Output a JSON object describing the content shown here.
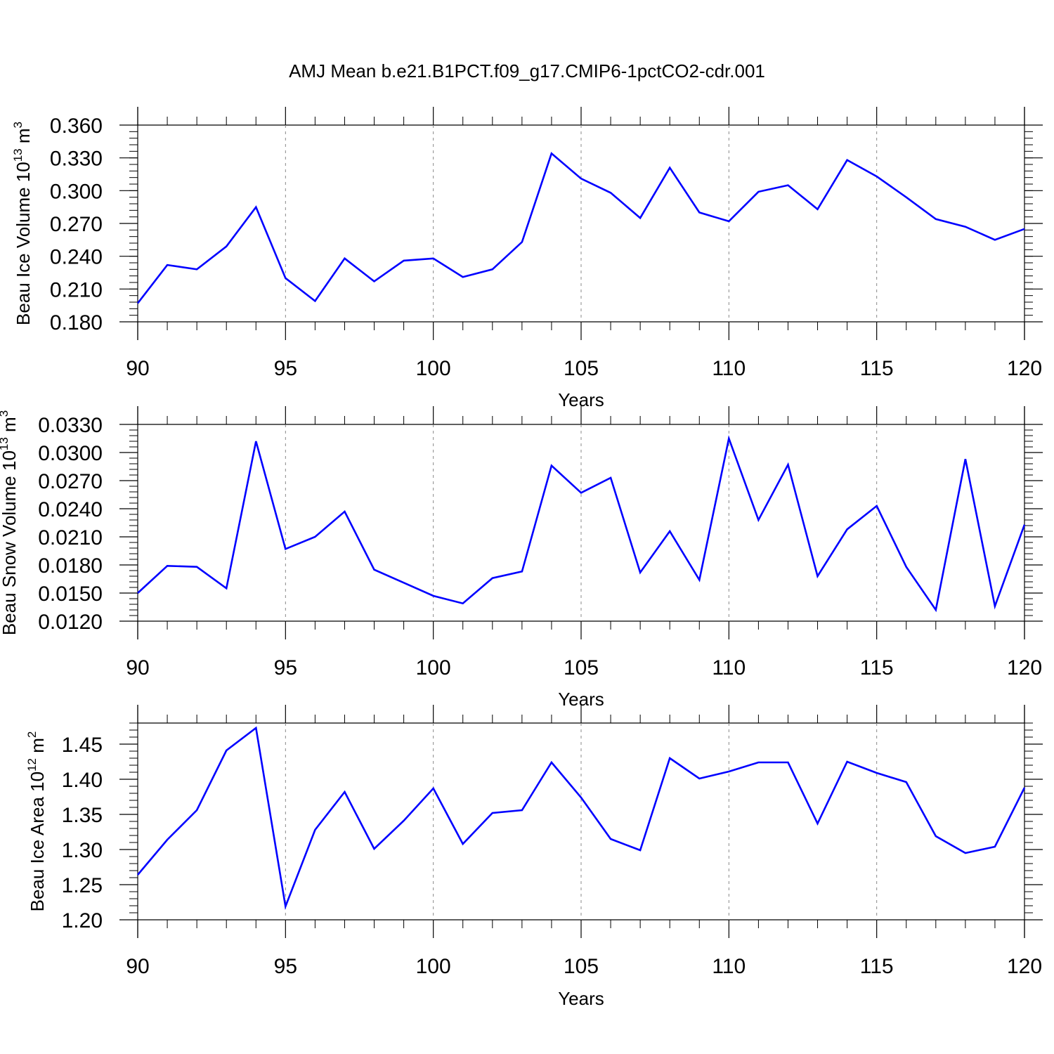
{
  "chart_data": [
    {
      "type": "line",
      "title": "AMJ Mean b.e21.B1PCT.f09_g17.CMIP6-1pctCO2-cdr.001",
      "xlabel": "Years",
      "ylabel": "Beau Ice Volume 10",
      "ylabel_exp": "13",
      "ylabel_unit": " m",
      "ylabel_unit_exp": "3",
      "xlim": [
        90,
        120
      ],
      "ylim": [
        0.18,
        0.36
      ],
      "x_ticks": [
        90,
        95,
        100,
        105,
        110,
        115,
        120
      ],
      "x_tick_labels": [
        "90",
        "95",
        "100",
        "105",
        "110",
        "115",
        "120"
      ],
      "y_ticks": [
        0.18,
        0.21,
        0.24,
        0.27,
        0.3,
        0.33,
        0.36
      ],
      "y_tick_labels": [
        "0.180",
        "0.210",
        "0.240",
        "0.270",
        "0.300",
        "0.330",
        "0.360"
      ],
      "grid": "vertical dashed at major x ticks",
      "color": "#0000ff",
      "x": [
        90,
        91,
        92,
        93,
        94,
        95,
        96,
        97,
        98,
        99,
        100,
        101,
        102,
        103,
        104,
        105,
        106,
        107,
        108,
        109,
        110,
        111,
        112,
        113,
        114,
        115,
        116,
        117,
        118,
        119,
        120
      ],
      "values": [
        0.197,
        0.232,
        0.228,
        0.249,
        0.285,
        0.22,
        0.199,
        0.238,
        0.217,
        0.236,
        0.238,
        0.221,
        0.228,
        0.253,
        0.334,
        0.311,
        0.298,
        0.275,
        0.321,
        0.28,
        0.272,
        0.299,
        0.305,
        0.283,
        0.328,
        0.313,
        0.294,
        0.274,
        0.267,
        0.255,
        0.265
      ]
    },
    {
      "type": "line",
      "xlabel": "Years",
      "ylabel": "Beau Snow Volume 10",
      "ylabel_exp": "13",
      "ylabel_unit": " m",
      "ylabel_unit_exp": "3",
      "xlim": [
        90,
        120
      ],
      "ylim": [
        0.012,
        0.033
      ],
      "x_ticks": [
        90,
        95,
        100,
        105,
        110,
        115,
        120
      ],
      "x_tick_labels": [
        "90",
        "95",
        "100",
        "105",
        "110",
        "115",
        "120"
      ],
      "y_ticks": [
        0.012,
        0.015,
        0.018,
        0.021,
        0.024,
        0.027,
        0.03,
        0.033
      ],
      "y_tick_labels": [
        "0.0120",
        "0.0150",
        "0.0180",
        "0.0210",
        "0.0240",
        "0.0270",
        "0.0300",
        "0.0330"
      ],
      "grid": "vertical dashed at major x ticks",
      "color": "#0000ff",
      "x": [
        90,
        91,
        92,
        93,
        94,
        95,
        96,
        97,
        98,
        99,
        100,
        101,
        102,
        103,
        104,
        105,
        106,
        107,
        108,
        109,
        110,
        111,
        112,
        113,
        114,
        115,
        116,
        117,
        118,
        119,
        120
      ],
      "values": [
        0.015,
        0.0179,
        0.0178,
        0.0155,
        0.0312,
        0.0197,
        0.021,
        0.0237,
        0.0175,
        0.0161,
        0.0147,
        0.0139,
        0.0166,
        0.0173,
        0.0286,
        0.0257,
        0.0273,
        0.0172,
        0.0216,
        0.0164,
        0.0315,
        0.0228,
        0.0287,
        0.0168,
        0.0218,
        0.0243,
        0.0178,
        0.0132,
        0.0293,
        0.0136,
        0.0223
      ]
    },
    {
      "type": "line",
      "xlabel": "Years",
      "ylabel": "Beau Ice Area 10",
      "ylabel_exp": "12",
      "ylabel_unit": " m",
      "ylabel_unit_exp": "2",
      "xlim": [
        90,
        120
      ],
      "ylim": [
        1.2,
        1.48
      ],
      "x_ticks": [
        90,
        95,
        100,
        105,
        110,
        115,
        120
      ],
      "x_tick_labels": [
        "90",
        "95",
        "100",
        "105",
        "110",
        "115",
        "120"
      ],
      "y_ticks": [
        1.2,
        1.25,
        1.3,
        1.35,
        1.4,
        1.45
      ],
      "y_tick_labels": [
        "1.20",
        "1.25",
        "1.30",
        "1.35",
        "1.40",
        "1.45"
      ],
      "grid": "vertical dashed at major x ticks",
      "color": "#0000ff",
      "x": [
        90,
        91,
        92,
        93,
        94,
        95,
        96,
        97,
        98,
        99,
        100,
        101,
        102,
        103,
        104,
        105,
        106,
        107,
        108,
        109,
        110,
        111,
        112,
        113,
        114,
        115,
        116,
        117,
        118,
        119,
        120
      ],
      "values": [
        1.264,
        1.314,
        1.356,
        1.441,
        1.473,
        1.219,
        1.328,
        1.382,
        1.301,
        1.341,
        1.387,
        1.308,
        1.352,
        1.356,
        1.424,
        1.374,
        1.315,
        1.299,
        1.43,
        1.401,
        1.411,
        1.424,
        1.424,
        1.337,
        1.425,
        1.409,
        1.396,
        1.319,
        1.295,
        1.304,
        1.388
      ]
    }
  ]
}
